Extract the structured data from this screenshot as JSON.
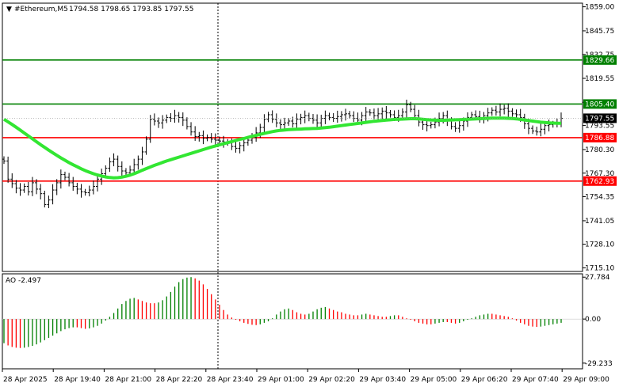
{
  "main_header": {
    "symbol": "#Ethereum,M5",
    "ohlc": "1794.58 1798.65 1793.85 1797.55"
  },
  "ao_header": {
    "label": "AO -2.497"
  },
  "colors": {
    "green_level": "#008000",
    "red_level": "#ff0000",
    "ma": "#32e632",
    "ao_up": "#008000",
    "ao_down": "#ff0000",
    "price_tag": "#000000"
  },
  "chart_data": [
    {
      "type": "candlestick",
      "title": "#Ethereum,M5",
      "ylim": [
        1713.1,
        1861.0
      ],
      "y_ticks": [
        "1859.00",
        "1845.75",
        "1832.75",
        "1819.55",
        "1806.35",
        "1793.55",
        "1780.30",
        "1767.30",
        "1754.35",
        "1741.05",
        "1728.10",
        "1715.10"
      ],
      "y_tick_values": [
        1859.0,
        1845.75,
        1832.75,
        1819.55,
        1806.35,
        1793.55,
        1780.3,
        1767.3,
        1754.35,
        1741.05,
        1728.1,
        1715.1
      ],
      "x_ticks": [
        "28 Apr 2025",
        "28 Apr 19:40",
        "28 Apr 21:00",
        "28 Apr 22:20",
        "28 Apr 23:40",
        "29 Apr 01:00",
        "29 Apr 02:20",
        "29 Apr 03:40",
        "29 Apr 05:00",
        "29 Apr 06:20",
        "29 Apr 07:40",
        "29 Apr 09:00"
      ],
      "horizontal_levels": [
        {
          "value": 1829.66,
          "label": "1829.66",
          "color": "green"
        },
        {
          "value": 1805.4,
          "label": "1805.40",
          "color": "green"
        },
        {
          "value": 1786.88,
          "label": "1786.88",
          "color": "red"
        },
        {
          "value": 1762.93,
          "label": "1762.93",
          "color": "red"
        }
      ],
      "current_price": {
        "value": 1797.55,
        "label": "1797.55"
      },
      "close_series": [
        1774.0,
        1764.0,
        1761.5,
        1759.0,
        1758.0,
        1760.0,
        1757.0,
        1762.0,
        1758.5,
        1756.0,
        1750.0,
        1752.5,
        1758.0,
        1762.0,
        1766.5,
        1765.0,
        1762.0,
        1760.0,
        1758.5,
        1757.0,
        1756.5,
        1758.0,
        1760.0,
        1764.0,
        1767.0,
        1770.0,
        1773.5,
        1775.0,
        1771.0,
        1768.5,
        1767.5,
        1769.0,
        1772.0,
        1775.0,
        1779.0,
        1786.0,
        1797.0,
        1796.0,
        1795.0,
        1796.5,
        1798.0,
        1797.5,
        1799.0,
        1798.0,
        1796.5,
        1793.0,
        1790.0,
        1787.5,
        1788.0,
        1786.5,
        1787.0,
        1786.0,
        1785.5,
        1785.0,
        1784.5,
        1784.0,
        1782.0,
        1781.0,
        1782.5,
        1784.0,
        1785.5,
        1787.0,
        1789.5,
        1792.5,
        1797.0,
        1799.5,
        1797.0,
        1795.0,
        1794.0,
        1795.0,
        1796.0,
        1794.5,
        1797.0,
        1798.0,
        1799.0,
        1797.5,
        1796.5,
        1795.0,
        1797.5,
        1799.0,
        1798.0,
        1797.5,
        1798.5,
        1799.5,
        1800.0,
        1799.0,
        1797.5,
        1796.5,
        1799.0,
        1801.0,
        1800.5,
        1799.0,
        1800.0,
        1801.5,
        1800.5,
        1799.5,
        1798.0,
        1799.0,
        1801.0,
        1805.0,
        1802.5,
        1799.0,
        1795.5,
        1794.0,
        1793.5,
        1794.0,
        1795.5,
        1797.5,
        1799.0,
        1796.5,
        1793.0,
        1792.0,
        1793.5,
        1796.0,
        1798.0,
        1799.5,
        1798.5,
        1797.5,
        1799.0,
        1800.5,
        1802.0,
        1801.0,
        1802.5,
        1803.0,
        1801.5,
        1800.0,
        1799.5,
        1798.0,
        1794.5,
        1792.0,
        1790.5,
        1790.0,
        1791.5,
        1793.5,
        1794.0,
        1794.5,
        1795.0,
        1797.55
      ],
      "ma_series": [
        1797.0,
        1795.6,
        1794.1,
        1792.6,
        1791.0,
        1789.4,
        1787.8,
        1786.2,
        1784.6,
        1783.0,
        1781.5,
        1780.0,
        1778.5,
        1777.1,
        1775.7,
        1774.4,
        1773.1,
        1771.9,
        1770.8,
        1769.7,
        1768.7,
        1767.8,
        1767.0,
        1766.3,
        1765.7,
        1765.2,
        1764.9,
        1764.7,
        1764.8,
        1765.1,
        1765.6,
        1766.2,
        1767.0,
        1767.9,
        1768.9,
        1769.8,
        1770.7,
        1771.6,
        1772.4,
        1773.2,
        1774.0,
        1774.7,
        1775.4,
        1776.1,
        1776.8,
        1777.5,
        1778.2,
        1778.9,
        1779.6,
        1780.3,
        1781.0,
        1781.7,
        1782.3,
        1782.9,
        1783.5,
        1784.1,
        1784.7,
        1785.3,
        1785.9,
        1786.4,
        1787.0,
        1787.6,
        1788.1,
        1788.7,
        1789.2,
        1789.7,
        1790.2,
        1790.6,
        1790.9,
        1791.1,
        1791.3,
        1791.4,
        1791.5,
        1791.6,
        1791.7,
        1791.8,
        1791.9,
        1792.0,
        1792.2,
        1792.4,
        1792.6,
        1792.9,
        1793.2,
        1793.5,
        1793.8,
        1794.1,
        1794.4,
        1794.7,
        1795.0,
        1795.3,
        1795.6,
        1795.9,
        1796.1,
        1796.3,
        1796.5,
        1796.7,
        1796.9,
        1797.0,
        1797.1,
        1797.2,
        1797.3,
        1797.3,
        1797.2,
        1797.0,
        1796.8,
        1796.6,
        1796.5,
        1796.4,
        1796.4,
        1796.5,
        1796.6,
        1796.7,
        1796.8,
        1796.9,
        1797.0,
        1797.1,
        1797.2,
        1797.3,
        1797.4,
        1797.5,
        1797.6,
        1797.6,
        1797.6,
        1797.6,
        1797.5,
        1797.4,
        1797.2,
        1796.9,
        1796.6,
        1796.3,
        1796.0,
        1795.7,
        1795.4,
        1795.2,
        1795.0,
        1794.9,
        1794.8,
        1794.8
      ]
    },
    {
      "type": "bar",
      "title": "AO -2.497",
      "ylim": [
        -33.0,
        30.0
      ],
      "y_ticks": [
        "27.784",
        "0.00",
        "-29.233"
      ],
      "y_tick_values": [
        27.784,
        0.0,
        -29.233
      ],
      "values": [
        -16.0,
        -17.5,
        -18.5,
        -19.0,
        -19.2,
        -19.0,
        -18.5,
        -17.8,
        -16.8,
        -15.5,
        -14.0,
        -12.5,
        -11.0,
        -9.5,
        -8.0,
        -6.8,
        -6.0,
        -5.5,
        -5.5,
        -6.0,
        -6.5,
        -6.2,
        -5.5,
        -4.5,
        -3.0,
        -1.0,
        1.5,
        4.0,
        7.0,
        10.0,
        12.0,
        13.5,
        14.0,
        13.0,
        12.0,
        11.0,
        10.5,
        10.5,
        11.0,
        12.5,
        15.0,
        18.0,
        21.5,
        24.5,
        26.5,
        27.5,
        27.8,
        27.0,
        25.5,
        23.0,
        20.0,
        16.5,
        13.0,
        9.5,
        6.0,
        3.0,
        1.0,
        -0.5,
        -1.5,
        -2.5,
        -3.2,
        -3.8,
        -4.0,
        -3.5,
        -2.5,
        -1.5,
        0.5,
        3.0,
        5.0,
        6.5,
        7.0,
        6.0,
        4.5,
        3.5,
        3.0,
        3.5,
        5.0,
        6.5,
        7.5,
        8.0,
        7.0,
        6.0,
        5.0,
        4.5,
        3.5,
        3.0,
        2.5,
        2.5,
        3.0,
        3.5,
        3.0,
        2.5,
        2.0,
        1.5,
        1.5,
        2.0,
        2.5,
        2.5,
        1.5,
        0.5,
        -0.5,
        -1.5,
        -2.5,
        -3.0,
        -3.5,
        -3.5,
        -3.0,
        -2.5,
        -2.0,
        -2.0,
        -2.5,
        -3.0,
        -2.5,
        -1.5,
        -0.5,
        0.5,
        1.5,
        2.5,
        3.0,
        3.5,
        3.5,
        3.0,
        2.5,
        2.0,
        1.5,
        0.5,
        -1.0,
        -2.5,
        -3.5,
        -4.5,
        -5.0,
        -5.2,
        -5.0,
        -4.5,
        -4.0,
        -3.5,
        -3.0,
        -2.497
      ]
    }
  ]
}
